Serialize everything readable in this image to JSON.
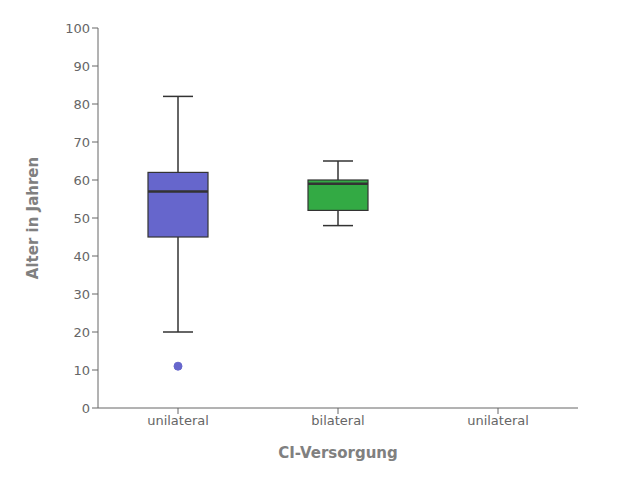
{
  "chart_data": {
    "type": "box",
    "xlabel": "CI-Versorgung",
    "ylabel": "Alter in Jahren",
    "categories": [
      "unilateral",
      "bilateral"
    ],
    "whisker_low": [
      20,
      48
    ],
    "q1": [
      45,
      52
    ],
    "median": [
      57,
      59
    ],
    "q3": [
      62,
      60
    ],
    "whisker_high": [
      82,
      65
    ],
    "outliers": [
      [
        11
      ],
      []
    ],
    "colors": [
      "#6666cc",
      "#33aa44"
    ],
    "ylim": [
      0,
      100
    ],
    "yticks": [
      0,
      10,
      20,
      30,
      40,
      50,
      60,
      70,
      80,
      90,
      100
    ],
    "grid": false
  }
}
